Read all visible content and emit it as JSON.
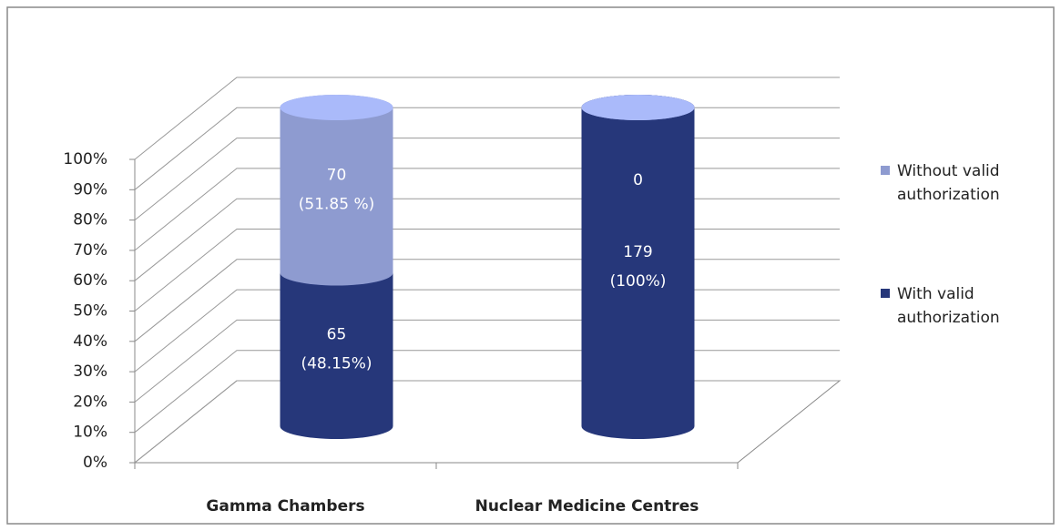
{
  "chart_data": {
    "type": "stacked_cylinder",
    "categories": [
      "Gamma Chambers",
      "Nuclear Medicine Centres"
    ],
    "series": [
      {
        "name": "With valid authorization",
        "color": "#26377a",
        "values": [
          48.15,
          100
        ],
        "value_labels": [
          [
            "65",
            "(48.15%)"
          ],
          [
            "179",
            "(100%)"
          ]
        ]
      },
      {
        "name": "Without valid authorization",
        "color": "#8e9bd0",
        "values": [
          51.85,
          0
        ],
        "value_labels": [
          [
            "70",
            "(51.85 %)"
          ],
          [
            "0"
          ]
        ]
      }
    ],
    "ylim": [
      0,
      100
    ],
    "yticks": [
      {
        "value": 0,
        "label": "0%"
      },
      {
        "value": 10,
        "label": "10%"
      },
      {
        "value": 20,
        "label": "20%"
      },
      {
        "value": 30,
        "label": "30%"
      },
      {
        "value": 40,
        "label": "40%"
      },
      {
        "value": 50,
        "label": "50%"
      },
      {
        "value": 60,
        "label": "60%"
      },
      {
        "value": 70,
        "label": "70%"
      },
      {
        "value": 80,
        "label": "80%"
      },
      {
        "value": 90,
        "label": "90%"
      },
      {
        "value": 100,
        "label": "100%"
      }
    ],
    "grid": true,
    "legend": "right"
  }
}
